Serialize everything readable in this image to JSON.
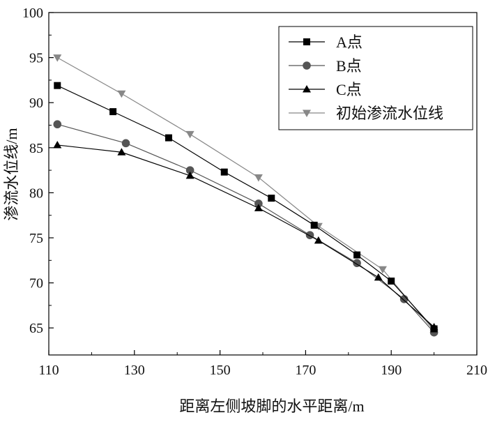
{
  "chart_data": {
    "type": "line",
    "title": "",
    "xlabel": "距离左侧坡脚的水平距离/m",
    "ylabel": "渗流水位线/m",
    "xlim": [
      110,
      210
    ],
    "ylim": [
      62,
      100
    ],
    "xticks": [
      110,
      130,
      150,
      170,
      190,
      210
    ],
    "yticks": [
      65,
      70,
      75,
      80,
      85,
      90,
      95,
      100
    ],
    "grid": false,
    "legend": "top-right",
    "series": [
      {
        "name": "A点",
        "marker": "square",
        "color": "#000000",
        "x": [
          112,
          125,
          138,
          151,
          162,
          172,
          182,
          190,
          200
        ],
        "y": [
          91.9,
          89.0,
          86.1,
          82.3,
          79.4,
          76.4,
          73.1,
          70.2,
          64.9
        ]
      },
      {
        "name": "B点",
        "marker": "circle",
        "color": "#555555",
        "x": [
          112,
          128,
          143,
          159,
          171,
          182,
          193,
          200
        ],
        "y": [
          87.6,
          85.5,
          82.5,
          78.8,
          75.3,
          72.2,
          68.2,
          64.5
        ]
      },
      {
        "name": "C点",
        "marker": "triangle-up",
        "color": "#000000",
        "x": [
          112,
          127,
          143,
          159,
          173,
          187,
          200
        ],
        "y": [
          85.3,
          84.5,
          81.9,
          78.3,
          74.7,
          70.6,
          65.1
        ]
      },
      {
        "name": "初始渗流水位线",
        "marker": "triangle-down",
        "color": "#888888",
        "x": [
          112,
          127,
          143,
          159,
          173,
          188,
          200
        ],
        "y": [
          95.0,
          91.0,
          86.5,
          81.7,
          76.3,
          71.5,
          64.7
        ]
      }
    ]
  }
}
